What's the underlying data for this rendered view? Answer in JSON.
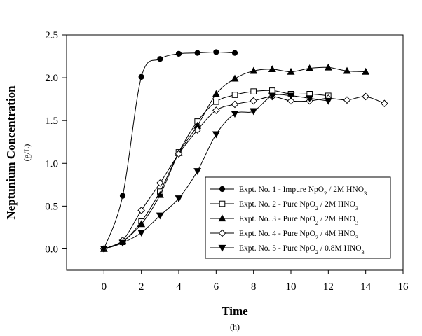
{
  "chart_data": {
    "type": "line",
    "xlabel": "Time",
    "xunit": "(h)",
    "ylabel": "Neptunium Concentration",
    "yunit": "(g/L)",
    "xlim": [
      -2,
      16
    ],
    "ylim": [
      -0.25,
      2.5
    ],
    "x_ticks": [
      0,
      2,
      4,
      6,
      8,
      10,
      12,
      14,
      16
    ],
    "y_ticks": [
      0.0,
      0.5,
      1.0,
      1.5,
      2.0,
      2.5
    ],
    "x_tick_labels": [
      "0",
      "2",
      "4",
      "6",
      "8",
      "10",
      "12",
      "14",
      "16"
    ],
    "y_tick_labels": [
      "0.0",
      "0.5",
      "1.0",
      "1.5",
      "2.0",
      "2.5"
    ],
    "grid": false,
    "legend_position": "lower-right",
    "series": [
      {
        "name": "Expt. No. 1 - Impure NpO2 / 2M HNO3",
        "legend": {
          "pre": "Expt. No. 1 - Impure NpO",
          "sub1": "2",
          "mid": " / 2M HNO",
          "sub2": "3"
        },
        "marker": "filled-circle",
        "x": [
          0,
          1,
          2,
          3,
          4,
          5,
          6,
          7
        ],
        "y": [
          0.0,
          0.62,
          2.01,
          2.22,
          2.28,
          2.29,
          2.3,
          2.29
        ]
      },
      {
        "name": "Expt. No. 2 - Pure NpO2 / 2M HNO3",
        "legend": {
          "pre": "Expt. No. 2 - Pure NpO",
          "sub1": "2",
          "mid": " / 2M HNO",
          "sub2": "3"
        },
        "marker": "open-square",
        "x": [
          0,
          1,
          2,
          3,
          4,
          5,
          6,
          7,
          8,
          9,
          10,
          11,
          12
        ],
        "y": [
          0.0,
          0.08,
          0.32,
          0.67,
          1.13,
          1.49,
          1.72,
          1.8,
          1.84,
          1.85,
          1.81,
          1.81,
          1.79
        ]
      },
      {
        "name": "Expt. No. 3 - Pure NpO2 / 2M HNO3",
        "legend": {
          "pre": "Expt. No. 3 - Pure NpO",
          "sub1": "2",
          "mid": " / 2M HNO",
          "sub2": "3"
        },
        "marker": "filled-triangle-up",
        "x": [
          0,
          1,
          2,
          3,
          4,
          5,
          6,
          7,
          8,
          9,
          10,
          11,
          12,
          13,
          14
        ],
        "y": [
          0.0,
          0.09,
          0.29,
          0.63,
          1.12,
          1.44,
          1.81,
          1.99,
          2.08,
          2.1,
          2.07,
          2.11,
          2.12,
          2.08,
          2.07
        ]
      },
      {
        "name": "Expt. No. 4 - Pure NpO2 / 4M HNO3",
        "legend": {
          "pre": "Expt. No. 4 - Pure NpO",
          "sub1": "2",
          "mid": " / 4M HNO",
          "sub2": "3"
        },
        "marker": "open-diamond",
        "x": [
          0,
          1,
          2,
          3,
          4,
          5,
          6,
          7,
          8,
          9,
          10,
          11,
          12,
          13,
          14,
          15
        ],
        "y": [
          0.0,
          0.1,
          0.45,
          0.77,
          1.11,
          1.39,
          1.62,
          1.69,
          1.73,
          1.78,
          1.73,
          1.73,
          1.76,
          1.74,
          1.78,
          1.7
        ]
      },
      {
        "name": "Expt. No. 5 - Pure NpO2 / 0.8M HNO3",
        "legend": {
          "pre": "Expt. No. 5 - Pure NpO",
          "sub1": "2",
          "mid": " / 0.8M HNO",
          "sub2": "3"
        },
        "marker": "filled-triangle-down",
        "x": [
          0,
          1,
          2,
          3,
          4,
          5,
          6,
          7,
          8,
          9,
          10,
          11,
          12
        ],
        "y": [
          0.0,
          0.07,
          0.19,
          0.39,
          0.59,
          0.91,
          1.34,
          1.58,
          1.61,
          1.79,
          1.79,
          1.76,
          1.73
        ]
      }
    ]
  }
}
